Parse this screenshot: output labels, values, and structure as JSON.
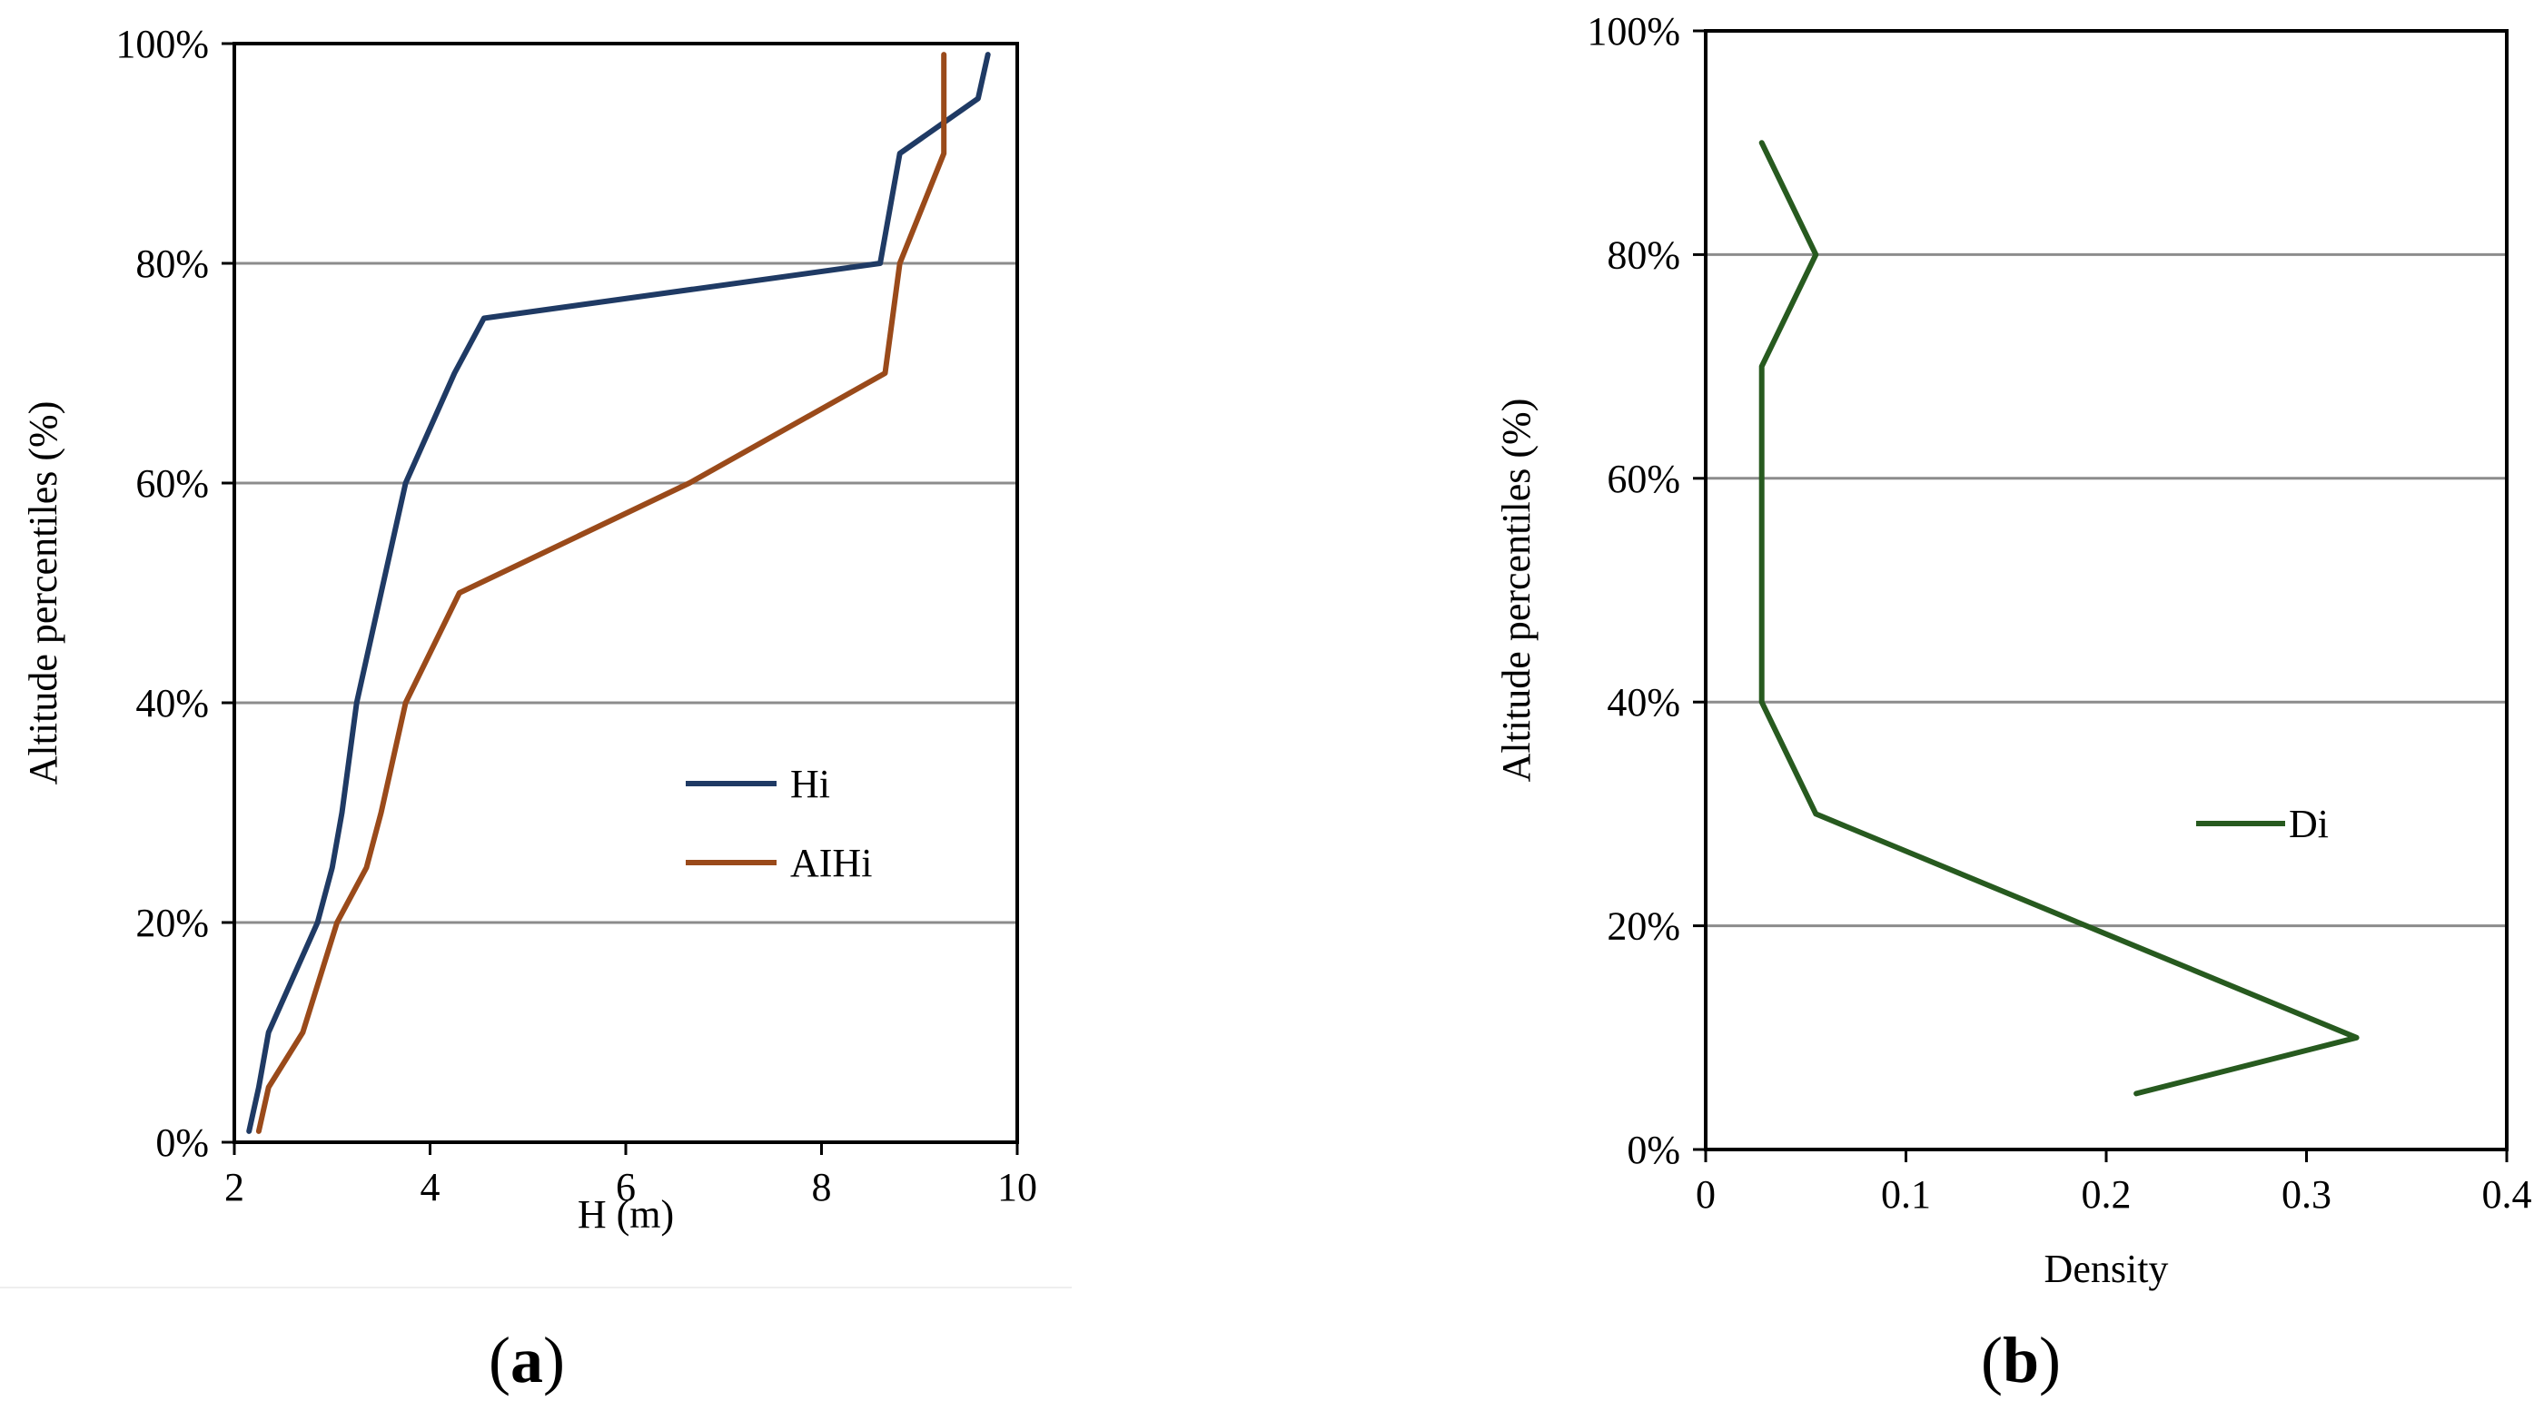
{
  "chart_data": [
    {
      "type": "line",
      "panel_label": "a",
      "title": "",
      "xlabel": "H (m)",
      "ylabel": "Altitude percentiles (%)",
      "xlim": [
        2,
        10
      ],
      "ylim": [
        0,
        100
      ],
      "x_ticks": [
        2,
        4,
        6,
        8,
        10
      ],
      "y_ticks": [
        0,
        20,
        40,
        60,
        80,
        100
      ],
      "y_tick_labels": [
        "0%",
        "20%",
        "40%",
        "60%",
        "80%",
        "100%"
      ],
      "grid": "horizontal",
      "legend_position": "center-right",
      "series": [
        {
          "name": "Hi",
          "color": "#1f3a64",
          "points": [
            [
              2.15,
              1
            ],
            [
              2.25,
              5
            ],
            [
              2.35,
              10
            ],
            [
              2.85,
              20
            ],
            [
              3.0,
              25
            ],
            [
              3.1,
              30
            ],
            [
              3.25,
              40
            ],
            [
              3.5,
              50
            ],
            [
              3.75,
              60
            ],
            [
              4.25,
              70
            ],
            [
              4.55,
              75
            ],
            [
              8.6,
              80
            ],
            [
              8.8,
              90
            ],
            [
              9.6,
              95
            ],
            [
              9.7,
              99
            ]
          ]
        },
        {
          "name": "AIHi",
          "color": "#9a4a1a",
          "points": [
            [
              2.25,
              1
            ],
            [
              2.35,
              5
            ],
            [
              2.7,
              10
            ],
            [
              3.05,
              20
            ],
            [
              3.35,
              25
            ],
            [
              3.5,
              30
            ],
            [
              3.75,
              40
            ],
            [
              4.3,
              50
            ],
            [
              6.65,
              60
            ],
            [
              8.65,
              70
            ],
            [
              8.8,
              80
            ],
            [
              9.25,
              90
            ],
            [
              9.25,
              99
            ]
          ]
        }
      ]
    },
    {
      "type": "line",
      "panel_label": "b",
      "title": "",
      "xlabel": "Density",
      "ylabel": "Altitude percentiles (%)",
      "xlim": [
        0,
        0.4
      ],
      "ylim": [
        0,
        100
      ],
      "x_ticks": [
        0,
        0.1,
        0.2,
        0.3,
        0.4
      ],
      "x_tick_labels": [
        "0",
        "0.1",
        "0.2",
        "0.3",
        "0.4"
      ],
      "y_ticks": [
        0,
        20,
        40,
        60,
        80,
        100
      ],
      "y_tick_labels": [
        "0%",
        "20%",
        "40%",
        "60%",
        "80%",
        "100%"
      ],
      "grid": "horizontal",
      "legend_position": "center-right",
      "series": [
        {
          "name": "Di",
          "color": "#275a1f",
          "points": [
            [
              0.215,
              5
            ],
            [
              0.325,
              10
            ],
            [
              0.055,
              30
            ],
            [
              0.028,
              40
            ],
            [
              0.028,
              70
            ],
            [
              0.055,
              80
            ],
            [
              0.028,
              90
            ]
          ]
        }
      ]
    }
  ]
}
